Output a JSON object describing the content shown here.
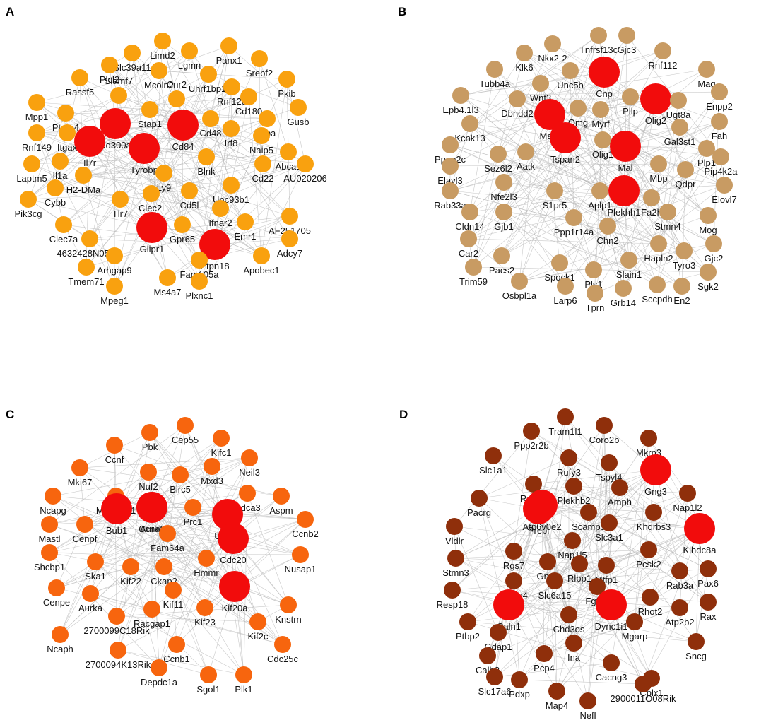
{
  "panels": [
    {
      "letter": "A",
      "node_color": "#f9a10f",
      "hub_color": "#f20c0c",
      "nodes": [
        "Limd2",
        "Lgmn",
        "Panx1",
        "Slc39a11",
        "Srebf2",
        "Plcl2",
        "Rassf5",
        "Mcoln2",
        "Uhrf1bp1l",
        "Rnf128",
        "Pkib",
        "Slamf7",
        "Stap1",
        "Cnr2",
        "Mpp1",
        "Ptger4",
        "Cd180",
        "Gusb",
        "Lipa",
        "Cd300a",
        "Rnf149",
        "Il7r",
        "Cd84",
        "Cd48",
        "Itgax",
        "Irf8",
        "Naip5",
        "Abca1",
        "Il1a",
        "Tyrobp",
        "Laptm5",
        "Blnk",
        "Cd22",
        "AU020206",
        "H2-DMa",
        "Ly9",
        "Unc93b1",
        "Cybb",
        "Pik3cg",
        "Tlr7",
        "Clec2i",
        "Cd5l",
        "Ifnar2",
        "Emr1",
        "AF251705",
        "Clec7a",
        "Gpr65",
        "Ptpn18",
        "4632428N05Rik",
        "Glipr1",
        "Adcy7",
        "Arhgap9",
        "Fam105a",
        "Apobec1",
        "Tmem71",
        "Mpeg1",
        "Ms4a7",
        "Plxnc1"
      ],
      "hubs": [
        "Cd300a",
        "Il7r",
        "Cd84",
        "Tyrobp",
        "Glipr1",
        "Ptpn18"
      ]
    },
    {
      "letter": "B",
      "node_color": "#c89b63",
      "hub_color": "#f20c0c",
      "nodes": [
        "Tnfrsf13c",
        "Gjc3",
        "Nkx2-2",
        "Rnf112",
        "Klk6",
        "Tubb4a",
        "Unc5b",
        "Cnp",
        "Mag",
        "Wnt3",
        "Epb4.1l3",
        "Dbndd2",
        "Pllp",
        "Enpp2",
        "Myrf",
        "Omg",
        "Olig2",
        "Ugt8a",
        "Kcnk13",
        "Mapt",
        "Fah",
        "Ppap2c",
        "Gal3st1",
        "Plp1",
        "Aatk",
        "Olig1",
        "Sez6l2",
        "Pip4k2a",
        "Elavl3",
        "Tspan2",
        "Mal",
        "Mbp",
        "Qdpr",
        "Nfe2l3",
        "Elovl7",
        "Rab33a",
        "S1pr5",
        "Aplp1",
        "Plekhh1",
        "Fa2h",
        "Gjb1",
        "Cldn14",
        "Stmn4",
        "Mog",
        "Ppp1r14a",
        "Car2",
        "Chn2",
        "Gjc2",
        "Pacs2",
        "Hapln2",
        "Tyro3",
        "Trim59",
        "Spock1",
        "Slain1",
        "Sgk2",
        "Osbpl1a",
        "Pls1",
        "Sccpdh",
        "Larp6",
        "Grb14",
        "En2",
        "Tprn"
      ],
      "hubs": [
        "Cnp",
        "Mapt",
        "Olig2",
        "Mal",
        "Tspan2",
        "Plekhh1"
      ]
    },
    {
      "letter": "C",
      "node_color": "#f7650e",
      "hub_color": "#f20c0c",
      "nodes": [
        "Pbk",
        "Cep55",
        "Ccnf",
        "Kifc1",
        "Neil3",
        "Mki67",
        "Nuf2",
        "Birc5",
        "Mxd3",
        "Cdca3",
        "Aspm",
        "Ncapg",
        "Mis18bp1",
        "Ccna2",
        "Prc1",
        "Ube2c",
        "Ccnb2",
        "Mastl",
        "Cenpf",
        "Bub1",
        "Aurkb",
        "Cdc20",
        "Fam64a",
        "Shcbp1",
        "Hmmr",
        "Nusap1",
        "Ska1",
        "Kif22",
        "Ckap2",
        "Kif20a",
        "Cenpe",
        "Aurka",
        "Kif11",
        "Kif23",
        "Racgap1",
        "Knstrn",
        "2700099C18Rik",
        "Kif2c",
        "Ncaph",
        "Ccnb1",
        "2700094K13Rik",
        "Cdc25c",
        "Depdc1a",
        "Sgol1",
        "Plk1"
      ],
      "hubs": [
        "Ccna2",
        "Bub1",
        "Aurkb",
        "Ube2c",
        "Cdc20",
        "Kif20a"
      ]
    },
    {
      "letter": "D",
      "node_color": "#8f2f0b",
      "hub_color": "#f20c0c",
      "nodes": [
        "Tram1l1",
        "Coro2b",
        "Ppp2r2b",
        "Mkrn3",
        "Slc1a1",
        "Rufy3",
        "Tspyl4",
        "Gng3",
        "Rab6b",
        "Amph",
        "Pacrg",
        "Plekhb2",
        "Nap1l2",
        "Atp6v0e2",
        "Scamp5",
        "Khdrbs3",
        "Vldlr",
        "Prepl",
        "Nap1l5",
        "Slc3a1",
        "Klhdc8a",
        "Rgs7",
        "Pcsk2",
        "Stmn3",
        "Gnaz",
        "Rlbp1",
        "Mtfp1",
        "Rab3a",
        "Pax6",
        "Kcnip4",
        "Caln1",
        "Resp18",
        "Slc6a15",
        "Fgf12",
        "Rhot2",
        "Rax",
        "Atp2b2",
        "Gdap1",
        "Ptbp2",
        "Chd3os",
        "Mgarp",
        "Dync1i1",
        "Sncg",
        "Calb2",
        "Pcp4",
        "Ina",
        "Slc17a6",
        "Cacng3",
        "Cplx1",
        "Pdxp",
        "Map4",
        "Nefl",
        "2900011O08Rik"
      ],
      "hubs": [
        "Gng3",
        "Atp6v0e2",
        "Klhdc8a",
        "Caln1",
        "Dync1i1",
        "Prepl"
      ]
    }
  ]
}
